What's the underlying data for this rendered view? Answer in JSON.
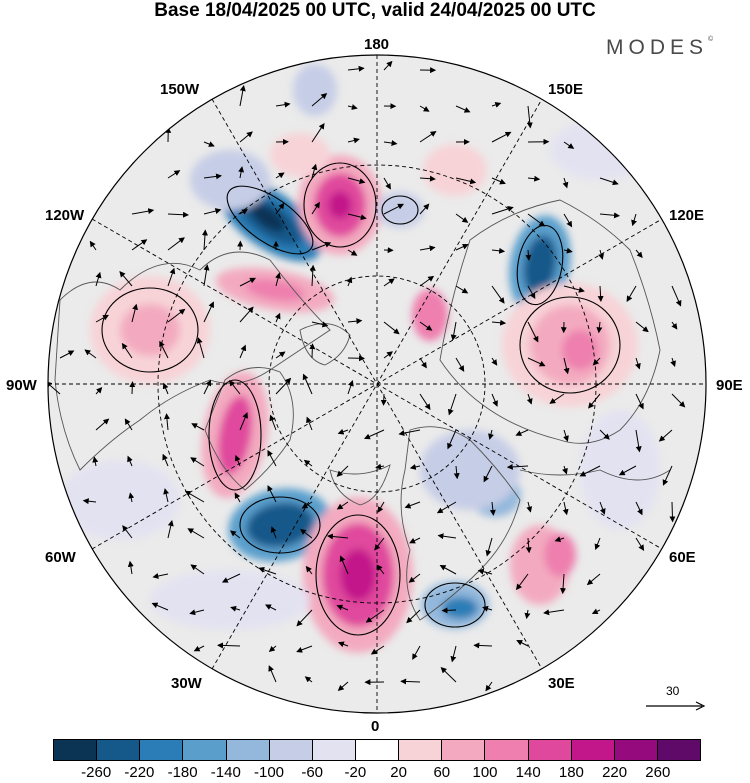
{
  "header": {
    "title": "Base 18/04/2025 00 UTC, valid 24/04/2025 00 UTC",
    "brand": "MODES",
    "brand_mark": "©"
  },
  "map": {
    "projection": "north-polar-stereographic",
    "longitude_labels": {
      "top": "180",
      "bottom": "0",
      "left": "90W",
      "right": "90E",
      "upper_left_1": "150W",
      "upper_left_2": "120W",
      "lower_left_1": "60W",
      "lower_left_2": "30W",
      "upper_right_1": "150E",
      "upper_right_2": "120E",
      "lower_right_1": "60E",
      "lower_right_2": "30E"
    },
    "reference_vector": "30",
    "colors": {
      "land_outline": "#555555",
      "graticule": "#000000",
      "background_shade": "#ebebeb"
    }
  },
  "colorbar": {
    "colors": [
      "#0b3354",
      "#15598a",
      "#2a7db6",
      "#5a9fcc",
      "#93b8dc",
      "#c6cde6",
      "#e3e2f1",
      "#ffffff",
      "#f7d3d7",
      "#f3aac0",
      "#ee7fae",
      "#e0489d",
      "#c2178a",
      "#950a7d",
      "#5f0a68"
    ],
    "labels": [
      "-260",
      "-220",
      "-180",
      "-140",
      "-100",
      "-60",
      "-20",
      "20",
      "60",
      "100",
      "140",
      "180",
      "220",
      "260"
    ]
  }
}
